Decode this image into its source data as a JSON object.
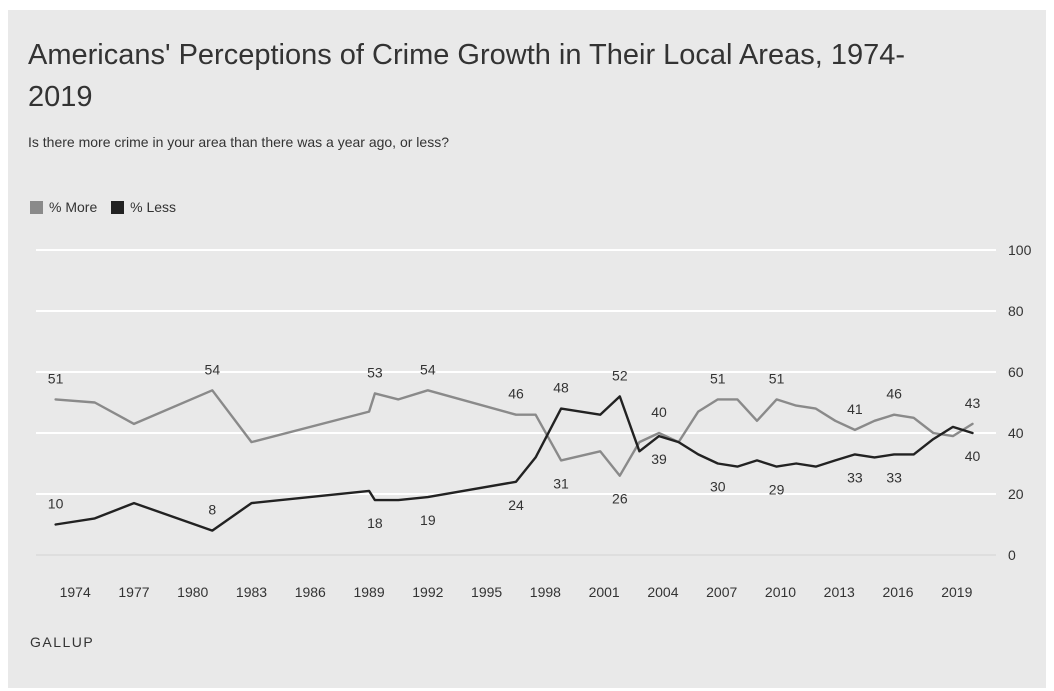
{
  "title": "Americans' Perceptions of Crime Growth in Their Local Areas, 1974-2019",
  "subtitle": "Is there more crime in your area than there was a year ago, or less?",
  "source": "GALLUP",
  "chart_data": {
    "type": "line",
    "title": "Americans' Perceptions of Crime Growth in Their Local Areas, 1974-2019",
    "subtitle": "Is there more crime in your area than there was a year ago, or less?",
    "xlabel": "",
    "ylabel": "",
    "ylim": [
      0,
      100
    ],
    "yticks": [
      0,
      20,
      40,
      60,
      80,
      100
    ],
    "xticks": [
      1974,
      1977,
      1980,
      1983,
      1986,
      1989,
      1992,
      1995,
      1998,
      2001,
      2004,
      2007,
      2010,
      2013,
      2016,
      2019
    ],
    "grid": true,
    "legend_position": "top-left",
    "series": [
      {
        "name": "% More",
        "color": "#8a8a8a",
        "points": [
          [
            1973,
            51
          ],
          [
            1975,
            50
          ],
          [
            1977,
            43
          ],
          [
            1981,
            54
          ],
          [
            1983,
            37
          ],
          [
            1989,
            47
          ],
          [
            1989.3,
            53
          ],
          [
            1990.5,
            51
          ],
          [
            1992,
            54
          ],
          [
            1996.5,
            46
          ],
          [
            1997.5,
            46
          ],
          [
            1998.8,
            31
          ],
          [
            2000.8,
            34
          ],
          [
            2001.8,
            26
          ],
          [
            2002.8,
            37
          ],
          [
            2003.8,
            40
          ],
          [
            2004.8,
            37
          ],
          [
            2005.8,
            47
          ],
          [
            2006.8,
            51
          ],
          [
            2007.8,
            51
          ],
          [
            2008.8,
            44
          ],
          [
            2009.8,
            51
          ],
          [
            2010.8,
            49
          ],
          [
            2011.8,
            48
          ],
          [
            2012.8,
            44
          ],
          [
            2013.8,
            41
          ],
          [
            2014.8,
            44
          ],
          [
            2015.8,
            46
          ],
          [
            2016.8,
            45
          ],
          [
            2017.8,
            40
          ],
          [
            2018.8,
            39
          ],
          [
            2019.8,
            43
          ]
        ]
      },
      {
        "name": "% Less",
        "color": "#222222",
        "points": [
          [
            1973,
            10
          ],
          [
            1975,
            12
          ],
          [
            1977,
            17
          ],
          [
            1981,
            8
          ],
          [
            1983,
            17
          ],
          [
            1989,
            21
          ],
          [
            1989.3,
            18
          ],
          [
            1990.5,
            18
          ],
          [
            1992,
            19
          ],
          [
            1996.5,
            24
          ],
          [
            1997.5,
            32
          ],
          [
            1998.8,
            48
          ],
          [
            2000.8,
            46
          ],
          [
            2001.8,
            52
          ],
          [
            2002.8,
            34
          ],
          [
            2003.8,
            39
          ],
          [
            2004.8,
            37
          ],
          [
            2005.8,
            33
          ],
          [
            2006.8,
            30
          ],
          [
            2007.8,
            29
          ],
          [
            2008.8,
            31
          ],
          [
            2009.8,
            29
          ],
          [
            2010.8,
            30
          ],
          [
            2011.8,
            29
          ],
          [
            2012.8,
            31
          ],
          [
            2013.8,
            33
          ],
          [
            2014.8,
            32
          ],
          [
            2015.8,
            33
          ],
          [
            2016.8,
            33
          ],
          [
            2017.8,
            38
          ],
          [
            2018.8,
            42
          ],
          [
            2019.8,
            40
          ]
        ]
      }
    ],
    "annotations": [
      {
        "series": "% More",
        "x": 1973,
        "y": 51,
        "text": "51",
        "pos": "above"
      },
      {
        "series": "% More",
        "x": 1981,
        "y": 54,
        "text": "54",
        "pos": "above"
      },
      {
        "series": "% More",
        "x": 1989.3,
        "y": 53,
        "text": "53",
        "pos": "above"
      },
      {
        "series": "% More",
        "x": 1992,
        "y": 54,
        "text": "54",
        "pos": "above"
      },
      {
        "series": "% More",
        "x": 1996.5,
        "y": 46,
        "text": "46",
        "pos": "above"
      },
      {
        "series": "% More",
        "x": 1998.8,
        "y": 31,
        "text": "31",
        "pos": "below"
      },
      {
        "series": "% More",
        "x": 2001.8,
        "y": 26,
        "text": "26",
        "pos": "below"
      },
      {
        "series": "% More",
        "x": 2003.8,
        "y": 40,
        "text": "40",
        "pos": "above"
      },
      {
        "series": "% More",
        "x": 2006.8,
        "y": 51,
        "text": "51",
        "pos": "above"
      },
      {
        "series": "% More",
        "x": 2009.8,
        "y": 51,
        "text": "51",
        "pos": "above"
      },
      {
        "series": "% More",
        "x": 2013.8,
        "y": 41,
        "text": "41",
        "pos": "above"
      },
      {
        "series": "% More",
        "x": 2015.8,
        "y": 46,
        "text": "46",
        "pos": "above"
      },
      {
        "series": "% More",
        "x": 2019.8,
        "y": 43,
        "text": "43",
        "pos": "above"
      },
      {
        "series": "% Less",
        "x": 1973,
        "y": 10,
        "text": "10",
        "pos": "above"
      },
      {
        "series": "% Less",
        "x": 1981,
        "y": 8,
        "text": "8",
        "pos": "above"
      },
      {
        "series": "% Less",
        "x": 1989.3,
        "y": 18,
        "text": "18",
        "pos": "below"
      },
      {
        "series": "% Less",
        "x": 1992,
        "y": 19,
        "text": "19",
        "pos": "below"
      },
      {
        "series": "% Less",
        "x": 1996.5,
        "y": 24,
        "text": "24",
        "pos": "below"
      },
      {
        "series": "% Less",
        "x": 1998.8,
        "y": 48,
        "text": "48",
        "pos": "above"
      },
      {
        "series": "% Less",
        "x": 2001.8,
        "y": 52,
        "text": "52",
        "pos": "above"
      },
      {
        "series": "% Less",
        "x": 2003.8,
        "y": 39,
        "text": "39",
        "pos": "below"
      },
      {
        "series": "% Less",
        "x": 2006.8,
        "y": 30,
        "text": "30",
        "pos": "below"
      },
      {
        "series": "% Less",
        "x": 2009.8,
        "y": 29,
        "text": "29",
        "pos": "below"
      },
      {
        "series": "% Less",
        "x": 2013.8,
        "y": 33,
        "text": "33",
        "pos": "below"
      },
      {
        "series": "% Less",
        "x": 2015.8,
        "y": 33,
        "text": "33",
        "pos": "below"
      },
      {
        "series": "% Less",
        "x": 2019.8,
        "y": 40,
        "text": "40",
        "pos": "below"
      }
    ]
  }
}
